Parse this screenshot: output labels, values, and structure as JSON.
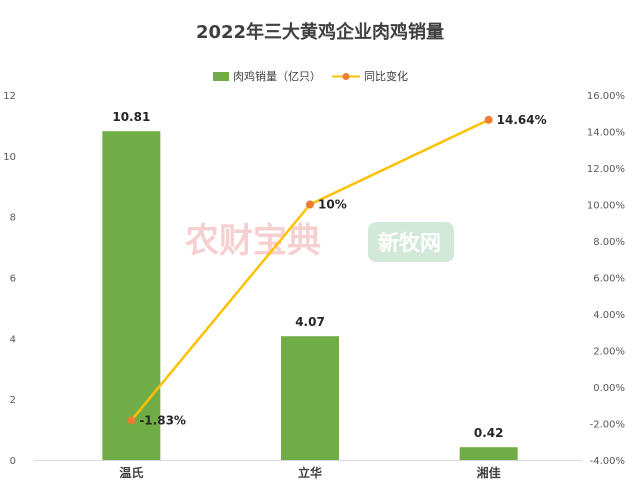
{
  "chart_data": {
    "type": "bar",
    "title": "2022年三大黄鸡企业肉鸡销量",
    "categories": [
      "温氏",
      "立华",
      "湘佳"
    ],
    "series": [
      {
        "name": "肉鸡销量（亿只）",
        "kind": "bar",
        "axis": "left",
        "color": "#70ad47",
        "values": [
          10.81,
          4.07,
          0.42
        ],
        "labels": [
          "10.81",
          "4.07",
          "0.42"
        ]
      },
      {
        "name": "同比变化",
        "kind": "line",
        "axis": "right",
        "color": "#ffc000",
        "marker_color": "#ed7d31",
        "values": [
          -1.83,
          10.0,
          14.64
        ],
        "labels": [
          "-1.83%",
          "10%",
          "14.64%"
        ]
      }
    ],
    "y_left": {
      "ylim": [
        0,
        12
      ],
      "ticks": [
        "0",
        "2",
        "4",
        "6",
        "8",
        "10",
        "12"
      ]
    },
    "y_right": {
      "ylim": [
        -4,
        16
      ],
      "ticks": [
        "-4.00%",
        "-2.00%",
        "0.00%",
        "2.00%",
        "4.00%",
        "6.00%",
        "8.00%",
        "10.00%",
        "12.00%",
        "14.00%",
        "16.00%"
      ]
    },
    "legend_position": "top-center",
    "grid": false
  },
  "watermarks": [
    "农财宝典",
    "新牧网"
  ]
}
